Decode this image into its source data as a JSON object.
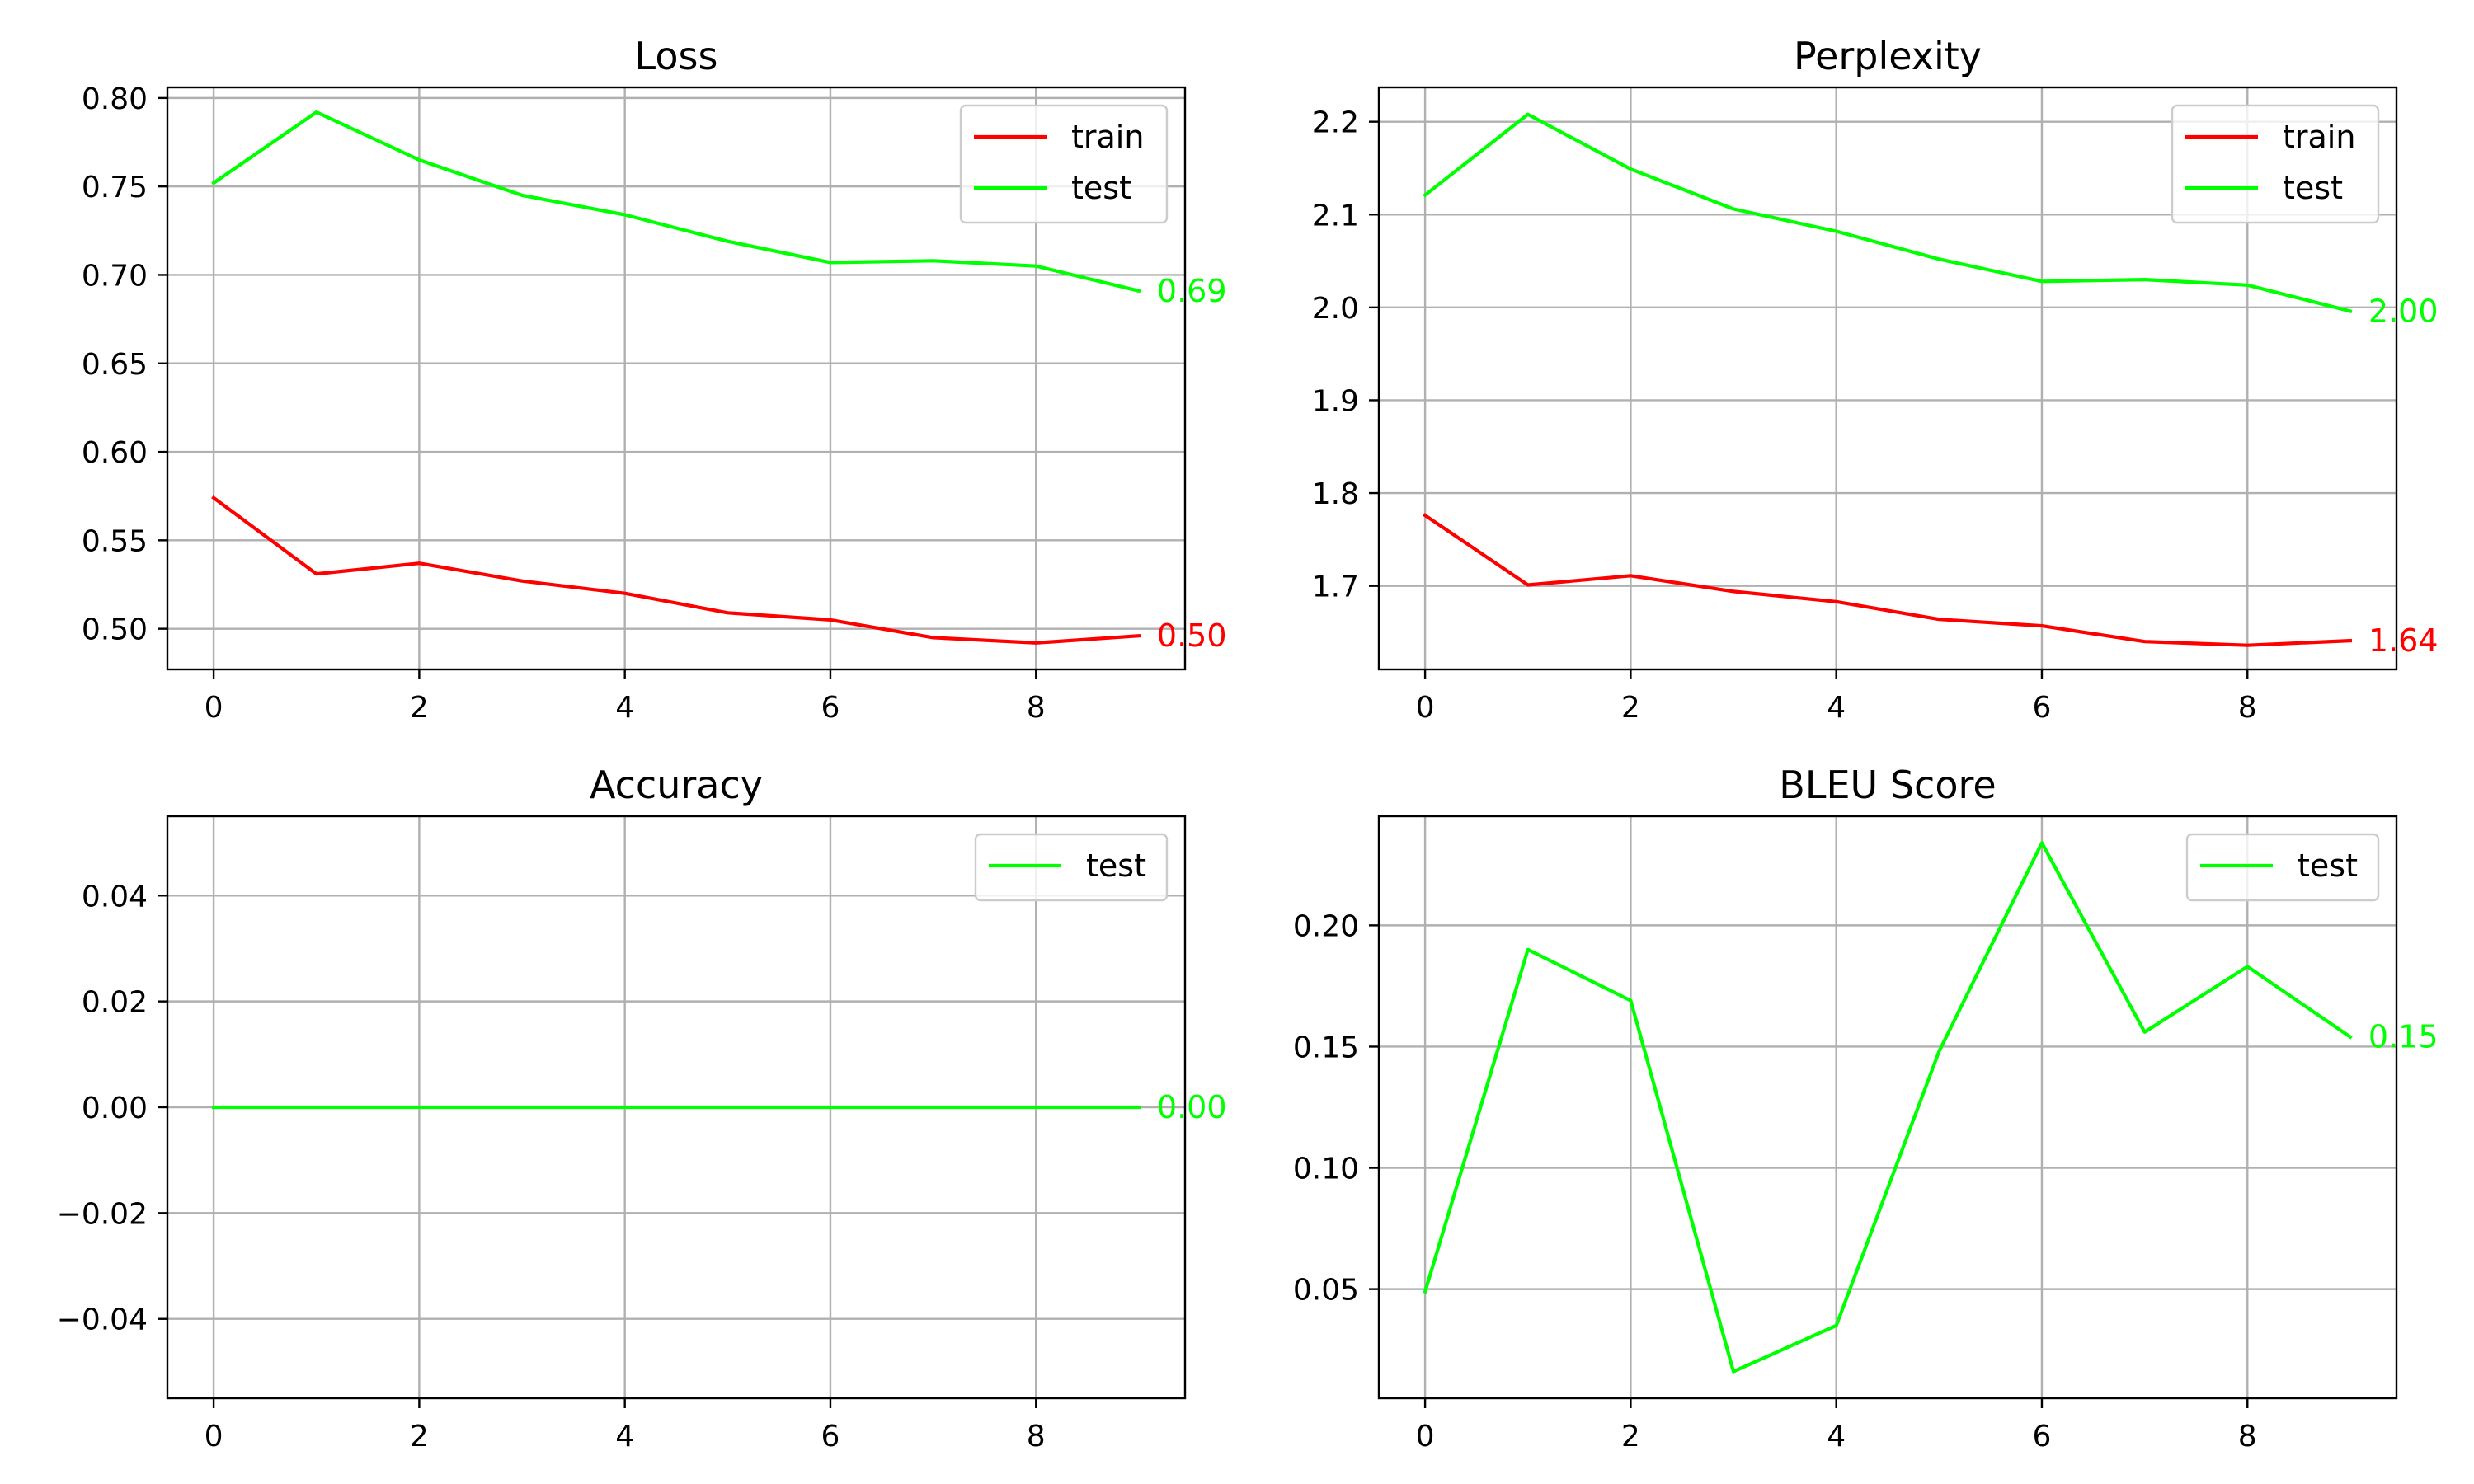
{
  "colors": {
    "train": "#ff0000",
    "test": "#00ff00"
  },
  "chart_data": [
    {
      "type": "line",
      "title": "Loss",
      "x": [
        0,
        1,
        2,
        3,
        4,
        5,
        6,
        7,
        8,
        9
      ],
      "xlim": [
        -0.45,
        9.45
      ],
      "ylim": [
        0.477,
        0.806
      ],
      "xticks": [
        0,
        2,
        4,
        6,
        8
      ],
      "yticks": [
        0.5,
        0.55,
        0.6,
        0.65,
        0.7,
        0.75,
        0.8
      ],
      "ytick_labels": [
        "0.50",
        "0.55",
        "0.60",
        "0.65",
        "0.70",
        "0.75",
        "0.80"
      ],
      "grid": true,
      "legend": "top-right",
      "series": [
        {
          "name": "train",
          "color": "#ff0000",
          "values": [
            0.574,
            0.531,
            0.537,
            0.527,
            0.52,
            0.509,
            0.505,
            0.495,
            0.492,
            0.496
          ],
          "end_label": "0.50"
        },
        {
          "name": "test",
          "color": "#00ff00",
          "values": [
            0.752,
            0.792,
            0.765,
            0.745,
            0.734,
            0.719,
            0.707,
            0.708,
            0.705,
            0.691
          ],
          "end_label": "0.69"
        }
      ]
    },
    {
      "type": "line",
      "title": "Perplexity",
      "x": [
        0,
        1,
        2,
        3,
        4,
        5,
        6,
        7,
        8,
        9
      ],
      "xlim": [
        -0.45,
        9.45
      ],
      "ylim": [
        1.61,
        2.237
      ],
      "xticks": [
        0,
        2,
        4,
        6,
        8
      ],
      "yticks": [
        1.7,
        1.8,
        1.9,
        2.0,
        2.1,
        2.2
      ],
      "ytick_labels": [
        "1.7",
        "1.8",
        "1.9",
        "2.0",
        "2.1",
        "2.2"
      ],
      "grid": true,
      "legend": "top-right",
      "series": [
        {
          "name": "train",
          "color": "#ff0000",
          "values": [
            1.776,
            1.701,
            1.711,
            1.694,
            1.683,
            1.664,
            1.657,
            1.64,
            1.636,
            1.641
          ],
          "end_label": "1.64"
        },
        {
          "name": "test",
          "color": "#00ff00",
          "values": [
            2.121,
            2.208,
            2.149,
            2.106,
            2.082,
            2.052,
            2.028,
            2.03,
            2.024,
            1.996
          ],
          "end_label": "2.00"
        }
      ]
    },
    {
      "type": "line",
      "title": "Accuracy",
      "x": [
        0,
        1,
        2,
        3,
        4,
        5,
        6,
        7,
        8,
        9
      ],
      "xlim": [
        -0.45,
        9.45
      ],
      "ylim": [
        -0.055,
        0.055
      ],
      "xticks": [
        0,
        2,
        4,
        6,
        8
      ],
      "yticks": [
        -0.04,
        -0.02,
        0.0,
        0.02,
        0.04
      ],
      "ytick_labels": [
        "−0.04",
        "−0.02",
        "0.00",
        "0.02",
        "0.04"
      ],
      "grid": true,
      "legend": "top-right",
      "series": [
        {
          "name": "test",
          "color": "#00ff00",
          "values": [
            0,
            0,
            0,
            0,
            0,
            0,
            0,
            0,
            0,
            0
          ],
          "end_label": "0.00"
        }
      ]
    },
    {
      "type": "line",
      "title": "BLEU Score",
      "x": [
        0,
        1,
        2,
        3,
        4,
        5,
        6,
        7,
        8,
        9
      ],
      "xlim": [
        -0.45,
        9.45
      ],
      "ylim": [
        0.005,
        0.245
      ],
      "xticks": [
        0,
        2,
        4,
        6,
        8
      ],
      "yticks": [
        0.05,
        0.1,
        0.15,
        0.2
      ],
      "ytick_labels": [
        "0.05",
        "0.10",
        "0.15",
        "0.20"
      ],
      "grid": true,
      "legend": "top-right",
      "series": [
        {
          "name": "test",
          "color": "#00ff00",
          "values": [
            0.049,
            0.19,
            0.169,
            0.016,
            0.035,
            0.148,
            0.234,
            0.156,
            0.183,
            0.154
          ],
          "end_label": "0.15"
        }
      ]
    }
  ]
}
